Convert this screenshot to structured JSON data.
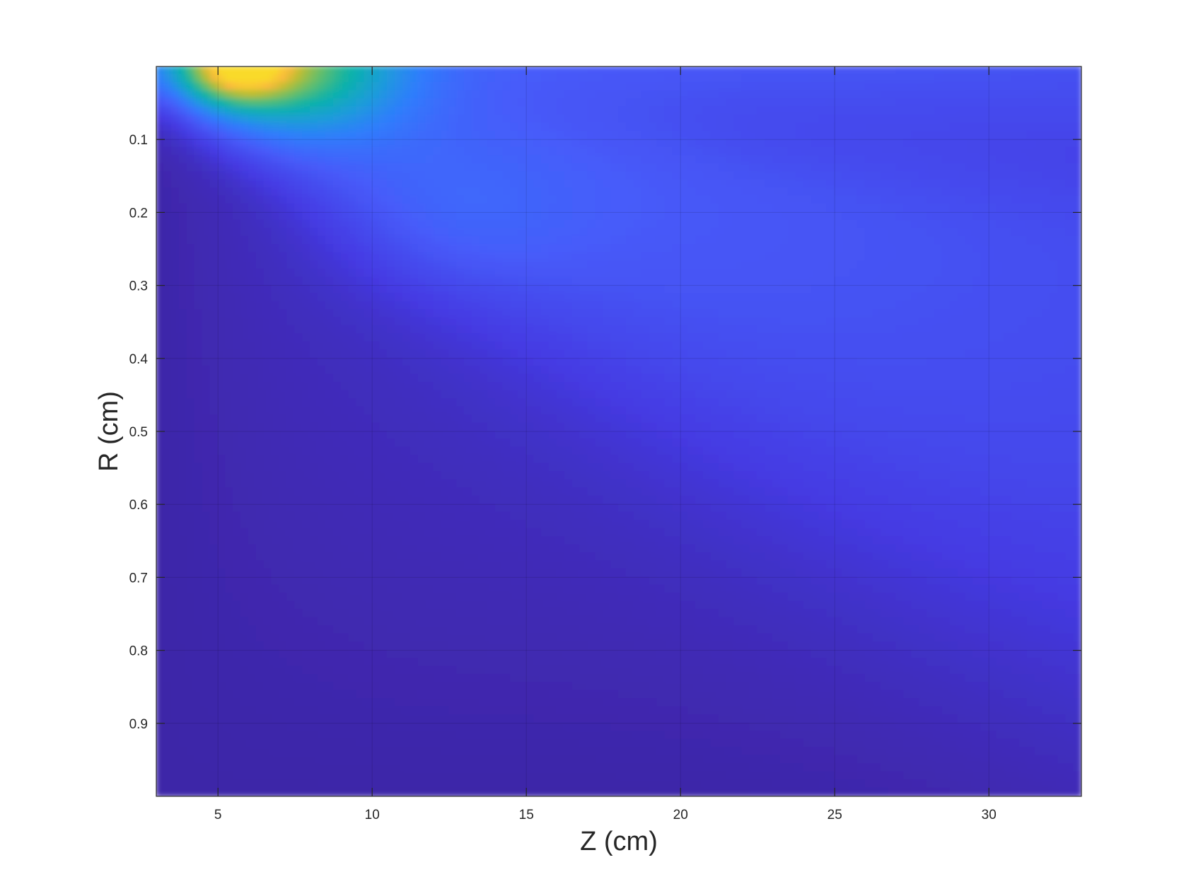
{
  "chart_data": {
    "type": "heatmap",
    "title": "",
    "xlabel": "Z (cm)",
    "ylabel": "R (cm)",
    "xlim": [
      3,
      33
    ],
    "ylim": [
      0,
      1
    ],
    "y_direction": "reversed",
    "x_ticks": [
      5,
      10,
      15,
      20,
      25,
      30
    ],
    "x_tick_labels": [
      "5",
      "10",
      "15",
      "20",
      "25",
      "30"
    ],
    "y_ticks": [
      0.1,
      0.2,
      0.3,
      0.4,
      0.5,
      0.6,
      0.7,
      0.8,
      0.9
    ],
    "y_tick_labels": [
      "0.1",
      "0.2",
      "0.3",
      "0.4",
      "0.5",
      "0.6",
      "0.7",
      "0.8",
      "0.9"
    ],
    "grid": true,
    "colormap": "parula",
    "colorbar": false,
    "peak": {
      "z": 5.5,
      "r": 0.02,
      "color": "#f9d92a"
    },
    "colors": {
      "low": "#3e26a8",
      "mid": "#2f7dfc",
      "high": "#f9fb15",
      "axis": "#262626"
    }
  }
}
